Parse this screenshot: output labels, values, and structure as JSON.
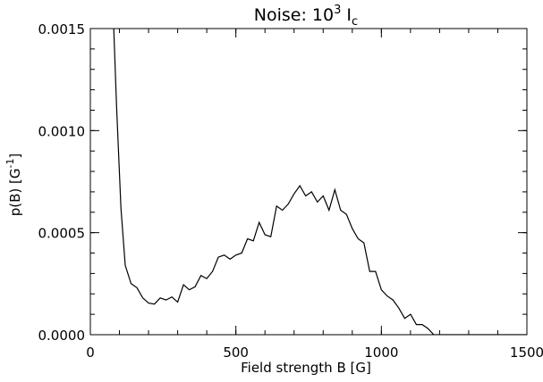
{
  "chart_data": {
    "type": "line",
    "title": {
      "prefix": "Noise: 10",
      "exponent": "3",
      "tail": " I",
      "subscript": "c"
    },
    "xlabel": "Field strength B [G]",
    "ylabel": {
      "prefix": "p(B) [G",
      "exponent": "-1",
      "suffix": "]"
    },
    "xlim": [
      0,
      1500
    ],
    "ylim": [
      0,
      0.0015
    ],
    "x_ticks": [
      {
        "value": 0,
        "label": "0"
      },
      {
        "value": 500,
        "label": "500"
      },
      {
        "value": 1000,
        "label": "1000"
      },
      {
        "value": 1500,
        "label": "1500"
      }
    ],
    "y_ticks": [
      {
        "value": 0,
        "label": "0.0000"
      },
      {
        "value": 0.0005,
        "label": "0.0005"
      },
      {
        "value": 0.001,
        "label": "0.0010"
      },
      {
        "value": 0.0015,
        "label": "0.0015"
      }
    ],
    "grid": false,
    "series": [
      {
        "x": [
          80,
          90,
          105,
          120,
          140,
          160,
          180,
          200,
          220,
          240,
          260,
          280,
          300,
          320,
          340,
          360,
          380,
          400,
          420,
          440,
          460,
          480,
          500,
          520,
          540,
          560,
          580,
          600,
          620,
          640,
          660,
          680,
          700,
          720,
          740,
          760,
          780,
          800,
          820,
          840,
          860,
          880,
          900,
          920,
          940,
          960,
          980,
          1000,
          1020,
          1040,
          1060,
          1080,
          1100,
          1120,
          1140,
          1160,
          1180,
          1200,
          1220,
          1240,
          1260,
          1280,
          1300,
          1320,
          1340,
          1360,
          1380,
          1400,
          1420,
          1440,
          1460,
          1480,
          1500
        ],
        "y": [
          0.00152,
          0.00112,
          0.00062,
          0.00034,
          0.00025,
          0.00023,
          0.00018,
          0.000155,
          0.00015,
          0.00018,
          0.00017,
          0.000185,
          0.00016,
          0.000245,
          0.00022,
          0.000235,
          0.00029,
          0.000275,
          0.00031,
          0.00038,
          0.00039,
          0.00037,
          0.00039,
          0.0004,
          0.00047,
          0.00046,
          0.00055,
          0.00049,
          0.00048,
          0.00063,
          0.00061,
          0.00064,
          0.00069,
          0.00073,
          0.00068,
          0.0007,
          0.00065,
          0.00068,
          0.00061,
          0.00071,
          0.00061,
          0.00059,
          0.00052,
          0.00047,
          0.00045,
          0.00031,
          0.00031,
          0.00022,
          0.00019,
          0.00017,
          0.00013,
          8e-05,
          0.0001,
          5e-05,
          5e-05,
          3e-05,
          0.0,
          0.0,
          0.0,
          0.0,
          0.0,
          0.0,
          0.0,
          0.0,
          0.0,
          0.0,
          0.0,
          0.0,
          0.0,
          0.0,
          0.0,
          0.0,
          0.0
        ],
        "color": "#000000"
      }
    ]
  }
}
